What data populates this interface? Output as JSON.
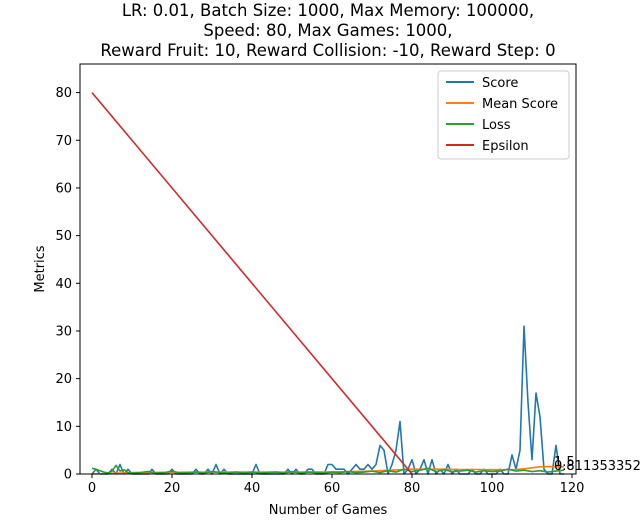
{
  "chart_data": {
    "type": "line",
    "title_lines": [
      "LR: 0.01, Batch Size: 1000, Max Memory: 100000,",
      "Speed: 80, Max Games: 1000,",
      "Reward Fruit: 10, Reward Collision: -10, Reward Step: 0"
    ],
    "xlabel": "Number of Games",
    "ylabel": "Metrics",
    "xlim": [
      -3,
      121
    ],
    "ylim": [
      0,
      86
    ],
    "xticks": [
      0,
      20,
      40,
      60,
      80,
      100,
      120
    ],
    "yticks": [
      0,
      10,
      20,
      30,
      40,
      50,
      60,
      70,
      80
    ],
    "grid": false,
    "legend_position": "top-right",
    "end_labels": [
      "1.5",
      "0.8113533520"
    ],
    "series": [
      {
        "name": "Score",
        "color": "#1f77b4",
        "x": [
          0,
          1,
          2,
          3,
          4,
          5,
          6,
          7,
          8,
          9,
          10,
          11,
          12,
          13,
          14,
          15,
          16,
          17,
          18,
          19,
          20,
          21,
          22,
          23,
          24,
          25,
          26,
          27,
          28,
          29,
          30,
          31,
          32,
          33,
          34,
          35,
          36,
          37,
          38,
          39,
          40,
          41,
          42,
          43,
          44,
          45,
          46,
          47,
          48,
          49,
          50,
          51,
          52,
          53,
          54,
          55,
          56,
          57,
          58,
          59,
          60,
          61,
          62,
          63,
          64,
          65,
          66,
          67,
          68,
          69,
          70,
          71,
          72,
          73,
          74,
          75,
          76,
          77,
          78,
          79,
          80,
          81,
          82,
          83,
          84,
          85,
          86,
          87,
          88,
          89,
          90,
          91,
          92,
          93,
          94,
          95,
          96,
          97,
          98,
          99,
          100,
          101,
          102,
          103,
          104,
          105,
          106,
          107,
          108,
          109,
          110,
          111,
          112,
          113,
          114,
          115,
          116,
          117,
          118
        ],
        "values": [
          0,
          1,
          0,
          0,
          0,
          1,
          0,
          2,
          0,
          1,
          0,
          0,
          0,
          0,
          0,
          1,
          0,
          0,
          0,
          0,
          1,
          0,
          0,
          0,
          0,
          0,
          1,
          0,
          0,
          1,
          0,
          2,
          0,
          1,
          0,
          0,
          0,
          0,
          0,
          0,
          0,
          2,
          0,
          0,
          0,
          0,
          0,
          0,
          0,
          1,
          0,
          1,
          0,
          0,
          1,
          1,
          0,
          0,
          0,
          2,
          2,
          1,
          1,
          1,
          0,
          1,
          2,
          1,
          1,
          2,
          1,
          2,
          6,
          5,
          0,
          2,
          5,
          11,
          0,
          1,
          3,
          0,
          1,
          3,
          0,
          3,
          0,
          1,
          0,
          2,
          0,
          1,
          0,
          0,
          0,
          1,
          0,
          0,
          1,
          0,
          0,
          0,
          1,
          0,
          0,
          4,
          1,
          5,
          31,
          15,
          3,
          17,
          12,
          1,
          0,
          0,
          6,
          0,
          0
        ]
      },
      {
        "name": "Mean Score",
        "color": "#ff7f0e",
        "x": [
          0,
          10,
          20,
          30,
          40,
          50,
          60,
          65,
          70,
          72,
          74,
          76,
          78,
          80,
          84,
          88,
          92,
          96,
          100,
          104,
          106,
          108,
          110,
          112,
          114,
          116,
          118
        ],
        "values": [
          0,
          0.3,
          0.35,
          0.4,
          0.4,
          0.4,
          0.45,
          0.5,
          0.6,
          0.7,
          0.8,
          0.85,
          0.95,
          1.0,
          1.0,
          1.0,
          0.95,
          0.95,
          0.9,
          0.9,
          0.95,
          1.1,
          1.3,
          1.5,
          1.55,
          1.5,
          1.5
        ]
      },
      {
        "name": "Loss",
        "color": "#2ca02c",
        "x": [
          0,
          1,
          2,
          3,
          4,
          5,
          6,
          7,
          8,
          9,
          10,
          12,
          14,
          16,
          18,
          20,
          22,
          24,
          26,
          28,
          30,
          32,
          34,
          36,
          38,
          40,
          42,
          44,
          46,
          48,
          50,
          52,
          54,
          56,
          58,
          60,
          62,
          64,
          66,
          68,
          70,
          72,
          74,
          76,
          78,
          80,
          82,
          84,
          86,
          88,
          90,
          92,
          94,
          96,
          98,
          100,
          102,
          104,
          106,
          108,
          110,
          112,
          114,
          116,
          118
        ],
        "values": [
          1.2,
          1.0,
          0.7,
          0.4,
          0.2,
          0.6,
          1.8,
          0.6,
          0.9,
          0.3,
          0.2,
          0.3,
          0.5,
          0.2,
          0.3,
          0.6,
          0.2,
          0.3,
          0.4,
          0.2,
          0.5,
          0.3,
          0.2,
          0.4,
          0.2,
          0.4,
          0.2,
          0.3,
          0.4,
          0.2,
          0.5,
          0.2,
          0.4,
          0.3,
          0.2,
          0.4,
          0.3,
          0.5,
          0.3,
          0.4,
          0.6,
          0.3,
          0.7,
          0.4,
          1.0,
          0.5,
          0.8,
          1.2,
          0.5,
          0.9,
          0.5,
          0.6,
          0.8,
          0.4,
          0.7,
          0.5,
          0.6,
          1.0,
          0.6,
          0.8,
          0.5,
          0.7,
          0.4,
          0.6,
          0.81
        ]
      },
      {
        "name": "Epsilon",
        "color": "#d62728",
        "x": [
          0,
          80
        ],
        "values": [
          80,
          0
        ]
      }
    ]
  }
}
